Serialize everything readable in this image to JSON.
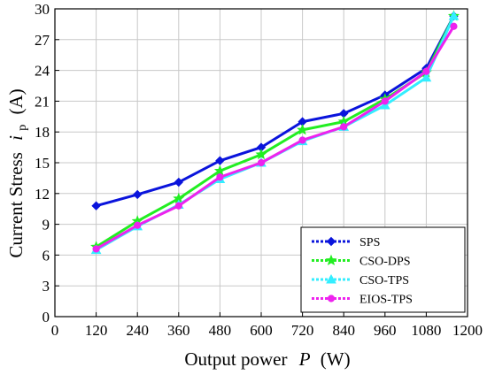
{
  "chart_data": {
    "type": "line",
    "x": [
      120,
      240,
      360,
      480,
      600,
      720,
      840,
      960,
      1080,
      1160
    ],
    "series": [
      {
        "name": "SPS",
        "color": "#0a14dc",
        "marker": "diamond",
        "values": [
          10.8,
          11.9,
          13.1,
          15.2,
          16.5,
          19.0,
          19.8,
          21.6,
          24.2,
          29.3
        ]
      },
      {
        "name": "CSO-DPS",
        "color": "#22ee22",
        "marker": "star",
        "values": [
          6.8,
          9.3,
          11.5,
          14.2,
          15.8,
          18.2,
          19.0,
          21.2,
          23.8,
          29.3
        ]
      },
      {
        "name": "CSO-TPS",
        "color": "#33eeff",
        "marker": "triangle",
        "values": [
          6.5,
          8.8,
          10.9,
          13.4,
          15.0,
          17.1,
          18.5,
          20.6,
          23.3,
          29.3
        ]
      },
      {
        "name": "EIOS-TPS",
        "color": "#ee22ee",
        "marker": "circle",
        "values": [
          6.6,
          8.9,
          10.8,
          13.6,
          15.0,
          17.2,
          18.5,
          21.0,
          23.9,
          28.3
        ]
      }
    ],
    "xlabel": {
      "main": "Output power",
      "symbol": "P",
      "unit": "(W)"
    },
    "ylabel": {
      "main": "Current Stress",
      "symbol": "i",
      "subscript": "p",
      "unit": "(A)"
    },
    "xlim": [
      0,
      1200
    ],
    "ylim": [
      0,
      30
    ],
    "xticks": [
      0,
      120,
      240,
      360,
      480,
      600,
      720,
      840,
      960,
      1080,
      1200
    ],
    "yticks": [
      0,
      3,
      6,
      9,
      12,
      15,
      18,
      21,
      24,
      27,
      30
    ],
    "grid": true,
    "legend_position": "bottom-right"
  }
}
